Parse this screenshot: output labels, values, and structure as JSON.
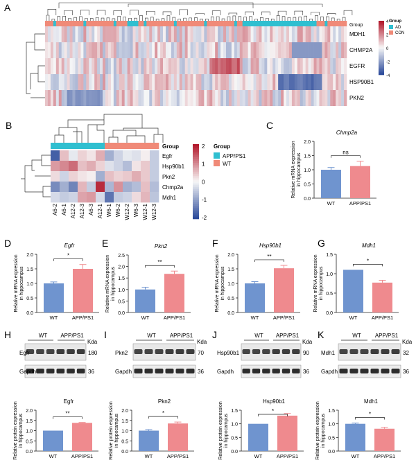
{
  "colors": {
    "wt": "#6f94cf",
    "app": "#ef8a8e",
    "ad_teal": "#2fbfd0",
    "con_salmon": "#f08a78",
    "heat_high": "#b2182b",
    "heat_mid": "#f7f7f7",
    "heat_low": "#2b4a9a"
  },
  "panel_letters": [
    "A",
    "B",
    "C",
    "D",
    "E",
    "F",
    "G",
    "H",
    "I",
    "J",
    "K"
  ],
  "panel_a": {
    "group_label": "Group",
    "genes": [
      "MDH1",
      "CHMP2A",
      "EGFR",
      "HSP90B1",
      "PKN2"
    ],
    "scale_ticks": [
      "4",
      "2",
      "0",
      "-2",
      "-4"
    ],
    "legend_title": "Group",
    "legend_items": [
      {
        "label": "AD",
        "color": "#2fbfd0"
      },
      {
        "label": "CON",
        "color": "#f08a78"
      }
    ]
  },
  "panel_b": {
    "group_label": "Group",
    "genes": [
      "Egfr",
      "Hsp90b1",
      "Pkn2",
      "Chmp2a",
      "Mdh1"
    ],
    "samples": [
      "A6-2",
      "A6-1",
      "A12-2",
      "A12-3",
      "A6-3",
      "A12-1",
      "W6-1",
      "W6-2",
      "W12-2",
      "W6-3",
      "W12-1",
      "W12-3"
    ],
    "values": [
      [
        -2.1,
        0.6,
        -0.2,
        0.4,
        0.2,
        0.8,
        -1.0,
        -0.5,
        -0.2,
        -0.3,
        0.1,
        -0.6
      ],
      [
        1.0,
        1.2,
        1.5,
        0.6,
        0.8,
        0.4,
        -0.3,
        -0.5,
        -0.8,
        0.2,
        0.5,
        -0.6
      ],
      [
        0.3,
        -0.5,
        0.4,
        0.2,
        0.1,
        -1.0,
        0.6,
        0.4,
        0.5,
        0.8,
        0.5,
        -0.6
      ],
      [
        -1.5,
        -1.0,
        -1.6,
        0.7,
        -0.6,
        2.2,
        -0.9,
        1.1,
        -1.0,
        -0.8,
        0.6,
        -0.8
      ],
      [
        -0.4,
        -0.6,
        -0.5,
        0.9,
        1.0,
        -0.4,
        -1.8,
        -0.6,
        -0.5,
        0.3,
        0.7,
        -0.7
      ]
    ],
    "scale_ticks": [
      "2",
      "1",
      "0",
      "-1",
      "-2"
    ],
    "legend_title": "Group",
    "legend_items": [
      {
        "label": "APP/PS1",
        "color": "#2fbfd0"
      },
      {
        "label": "WT",
        "color": "#f08a78"
      }
    ]
  },
  "qpcr_ylabel": [
    "Relative mRNA expression",
    "in hippocampus"
  ],
  "protein_ylabel": [
    "Relative protein expression",
    "in hippocampus"
  ],
  "categories": [
    "WT",
    "APP/PS1"
  ],
  "chart_data": [
    {
      "panel": "C",
      "type": "bar",
      "title": "Chmp2a",
      "categories": [
        "WT",
        "APP/PS1"
      ],
      "values": [
        1.0,
        1.13
      ],
      "errors": [
        0.08,
        0.17
      ],
      "ylim": [
        0,
        2.0
      ],
      "ticks": [
        "0.0",
        "0.5",
        "1.0",
        "1.5",
        "2.0"
      ],
      "sig": "ns",
      "ylabel": "Relative mRNA expression in hippocampus"
    },
    {
      "panel": "D",
      "type": "bar",
      "title": "Egfr",
      "categories": [
        "WT",
        "APP/PS1"
      ],
      "values": [
        1.0,
        1.5
      ],
      "errors": [
        0.05,
        0.15
      ],
      "ylim": [
        0,
        2.0
      ],
      "ticks": [
        "0.0",
        "0.5",
        "1.0",
        "1.5",
        "2.0"
      ],
      "sig": "*",
      "ylabel": "Relative mRNA expression in hippocampus"
    },
    {
      "panel": "E",
      "type": "bar",
      "title": "Pkn2",
      "categories": [
        "WT",
        "APP/PS1"
      ],
      "values": [
        1.0,
        1.68
      ],
      "errors": [
        0.1,
        0.12
      ],
      "ylim": [
        0,
        2.5
      ],
      "ticks": [
        "0.0",
        "0.5",
        "1.0",
        "1.5",
        "2.0",
        "2.5"
      ],
      "sig": "**",
      "ylabel": "Relative mRNA expression in hippocampus"
    },
    {
      "panel": "F",
      "type": "bar",
      "title": "Hsp90b1",
      "categories": [
        "WT",
        "APP/PS1"
      ],
      "values": [
        1.0,
        1.52
      ],
      "errors": [
        0.06,
        0.1
      ],
      "ylim": [
        0,
        2.0
      ],
      "ticks": [
        "0.0",
        "0.5",
        "1.0",
        "1.5",
        "2.0"
      ],
      "sig": "**",
      "ylabel": "Relative mRNA expression in hippocampus"
    },
    {
      "panel": "G",
      "type": "bar",
      "title": "Mdh1",
      "categories": [
        "WT",
        "APP/PS1"
      ],
      "values": [
        1.1,
        0.77
      ],
      "errors": [
        0.0,
        0.06
      ],
      "ylim": [
        0,
        1.5
      ],
      "ticks": [
        "0.0",
        "0.5",
        "1.0",
        "1.5"
      ],
      "sig": "*",
      "ylabel": "Relative mRNA expression in hippocampus"
    },
    {
      "panel": "H",
      "type": "bar",
      "title": "Egfr",
      "categories": [
        "WT",
        "APP/PS1"
      ],
      "values": [
        1.0,
        1.38
      ],
      "errors": [
        0.0,
        0.02
      ],
      "ylim": [
        0,
        2.0
      ],
      "ticks": [
        "0.0",
        "0.5",
        "1.0",
        "1.5",
        "2.0"
      ],
      "sig": "**",
      "ylabel": "Relative protein expression in hippocampus"
    },
    {
      "panel": "I",
      "type": "bar",
      "title": "Pkn2",
      "categories": [
        "WT",
        "APP/PS1"
      ],
      "values": [
        1.0,
        1.35
      ],
      "errors": [
        0.05,
        0.07
      ],
      "ylim": [
        0,
        2.0
      ],
      "ticks": [
        "0.0",
        "0.5",
        "1.0",
        "1.5",
        "2.0"
      ],
      "sig": "*",
      "ylabel": "Relative protein expression in hippocampus"
    },
    {
      "panel": "J",
      "type": "bar",
      "title": "Hsp90b1",
      "categories": [
        "WT",
        "APP/PS1"
      ],
      "values": [
        1.0,
        1.3
      ],
      "errors": [
        0.0,
        0.08
      ],
      "ylim": [
        0,
        1.5
      ],
      "ticks": [
        "0.0",
        "0.5",
        "1.0",
        "1.5"
      ],
      "sig": "*",
      "ylabel": "Relative protein expression in hippocampus"
    },
    {
      "panel": "K",
      "type": "bar",
      "title": "Mdh1",
      "categories": [
        "WT",
        "APP/PS1"
      ],
      "values": [
        1.0,
        0.82
      ],
      "errors": [
        0.03,
        0.05
      ],
      "ylim": [
        0,
        1.5
      ],
      "ticks": [
        "0.0",
        "0.5",
        "1.0",
        "1.5"
      ],
      "sig": "*",
      "ylabel": "Relative protein expression in hippocampus"
    }
  ],
  "blots": [
    {
      "panel": "H",
      "groups": [
        "WT",
        "APP/PS1"
      ],
      "target": "Egfr",
      "target_kda": "180",
      "loading": "Gapdh",
      "loading_kda": "36",
      "kda_label": "Kda"
    },
    {
      "panel": "I",
      "groups": [
        "WT",
        "APP/PS1"
      ],
      "target": "Pkn2",
      "target_kda": "70",
      "loading": "Gapdh",
      "loading_kda": "36",
      "kda_label": "Kda"
    },
    {
      "panel": "J",
      "groups": [
        "WT",
        "APP/PS1"
      ],
      "target": "Hsp90b1",
      "target_kda": "90",
      "loading": "Gapdh",
      "loading_kda": "36",
      "kda_label": "Kda"
    },
    {
      "panel": "K",
      "groups": [
        "WT",
        "APP/PS1"
      ],
      "target": "Mdh1",
      "target_kda": "32",
      "loading": "Gapdh",
      "loading_kda": "36",
      "kda_label": "Kda"
    }
  ]
}
